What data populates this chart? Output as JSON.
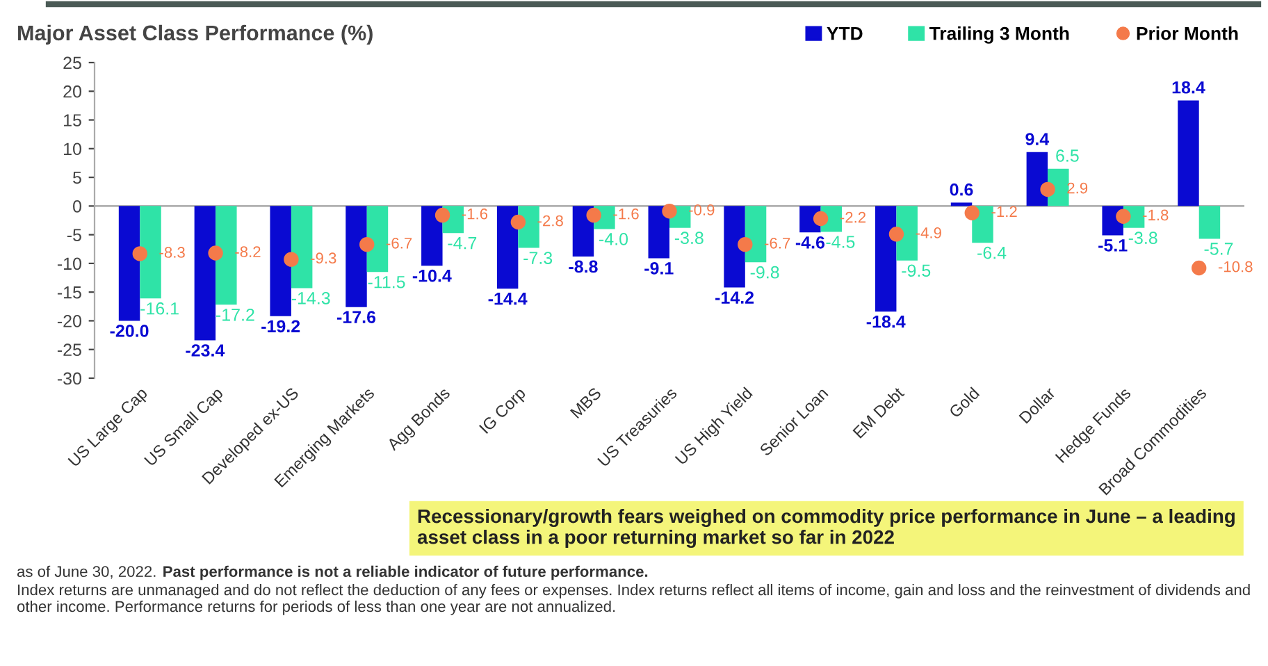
{
  "chart_data": {
    "type": "bar",
    "title": "Major Asset Class Performance (%)",
    "categories": [
      "US Large Cap",
      "US Small Cap",
      "Developed ex-US",
      "Emerging Markets",
      "Agg Bonds",
      "IG Corp",
      "MBS",
      "US Treasuries",
      "US High Yield",
      "Senior Loan",
      "EM Debt",
      "Gold",
      "Dollar",
      "Hedge Funds",
      "Broad Commodities"
    ],
    "series": [
      {
        "name": "YTD",
        "color": "#0a0ad2",
        "values": [
          -20.0,
          -23.4,
          -19.2,
          -17.6,
          -10.4,
          -14.4,
          -8.8,
          -9.1,
          -14.2,
          -4.6,
          -18.4,
          0.6,
          9.4,
          -5.1,
          18.4
        ],
        "value_labels": [
          "-20.0",
          "-23.4",
          "-19.2",
          "-17.6",
          "-10.4",
          "-14.4",
          "-8.8",
          "-9.1",
          "-14.2",
          "-4.6",
          "-18.4",
          "0.6",
          "9.4",
          "-5.1",
          "18.4"
        ]
      },
      {
        "name": "Trailing 3 Month",
        "color": "#2fe3a7",
        "values": [
          -16.1,
          -17.2,
          -14.3,
          -11.5,
          -4.7,
          -7.3,
          -4.0,
          -3.8,
          -9.8,
          -4.5,
          -9.5,
          -6.4,
          6.5,
          -3.8,
          -5.7
        ],
        "value_labels": [
          "-16.1",
          "-17.2",
          "-14.3",
          "-11.5",
          "-4.7",
          "-7.3",
          "-4.0",
          "-3.8",
          "-9.8",
          "-4.5",
          "-9.5",
          "-6.4",
          "6.5",
          "-3.8",
          "-5.7"
        ]
      },
      {
        "name": "Prior Month",
        "type": "scatter",
        "color": "#f47a4a",
        "x": [
          "US Large Cap",
          "US Small Cap",
          "Developed ex-US",
          "Emerging Markets",
          "Agg Bonds",
          "IG Corp",
          "MBS",
          "US Treasuries",
          "US High Yield",
          "Senior Loan",
          "EM Debt",
          "Gold",
          "Dollar",
          "Hedge Funds",
          "Broad Commodities"
        ],
        "values": [
          -8.3,
          -8.2,
          -9.3,
          -6.7,
          -1.6,
          -2.8,
          -1.6,
          -0.9,
          -6.7,
          -2.2,
          -4.9,
          -1.2,
          2.9,
          -1.8,
          -10.8
        ],
        "value_labels": [
          "-8.3",
          "-8.2",
          "-9.3",
          "-6.7",
          "-1.6",
          "-2.8",
          "-1.6",
          "-0.9",
          "-6.7",
          "-2.2",
          "-4.9",
          "-1.2",
          "2.9",
          "-1.8",
          "-10.8"
        ]
      }
    ],
    "ylim": [
      -30,
      25
    ],
    "yticks": [
      -30,
      -25,
      -20,
      -15,
      -10,
      -5,
      0,
      5,
      10,
      15,
      20,
      25
    ],
    "ref_lines": [
      {
        "axis": "y",
        "value": 0,
        "color": "#b0b0b0"
      }
    ],
    "grid": false,
    "legend": "top right",
    "marker": "circle",
    "annotations": [
      "Recessionary/growth fears weighed on commodity price performance in June – a leading asset class in a poor returning market so far in 2022",
      "as of June 30, 2022.",
      "Past performance is not a reliable indicator of future performance.",
      "Index returns are unmanaged and do not reflect the deduction of any fees or expenses. Index returns reflect all items of income, gain and loss and the reinvestment of dividends and other income. Performance returns for periods of less than one year are not annualized."
    ]
  }
}
